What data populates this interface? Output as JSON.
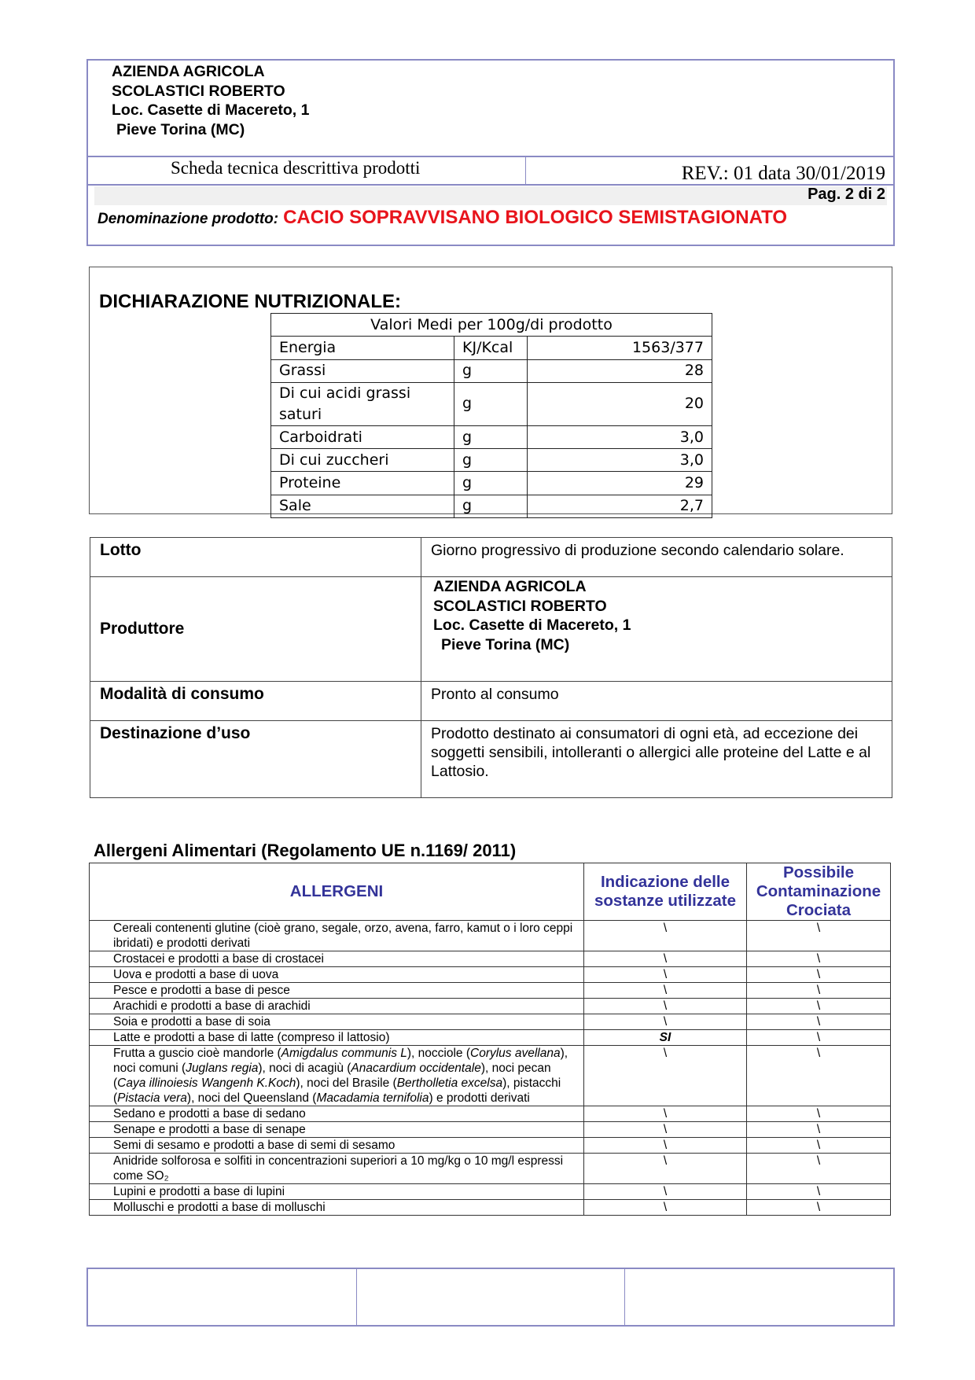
{
  "header": {
    "company": [
      "AZIENDA AGRICOLA",
      "SCOLASTICI ROBERTO",
      "Loc. Casette di Macereto, 1",
      "Pieve Torina (MC)"
    ],
    "doc_title": "Scheda tecnica descrittiva prodotti",
    "revision": "REV.: 01 data 30/01/2019",
    "page": "Pag. 2 di 2",
    "product_label": "Denominazione prodotto:",
    "product_name": "CACIO SOPRAVVISANO BIOLOGICO SEMISTAGIONATO",
    "product_color": "#e8141c"
  },
  "nutrition": {
    "title": "DICHIARAZIONE NUTRIZIONALE:",
    "header": "Valori Medi per 100g/di prodotto",
    "rows": [
      {
        "name": "Energia",
        "unit": "KJ/Kcal",
        "value": "1563/377"
      },
      {
        "name": "Grassi",
        "unit": "g",
        "value": "28"
      },
      {
        "name": "Di cui acidi grassi saturi",
        "unit": "g",
        "value": "20"
      },
      {
        "name": "Carboidrati",
        "unit": "g",
        "value": "3,0"
      },
      {
        "name": "Di cui zuccheri",
        "unit": "g",
        "value": "3,0"
      },
      {
        "name": "Proteine",
        "unit": "g",
        "value": "29"
      },
      {
        "name": "Sale",
        "unit": "g",
        "value": "2,7"
      }
    ]
  },
  "info": {
    "lotto_label": "Lotto",
    "lotto_value": "Giorno progressivo di produzione secondo calendario solare.",
    "produttore_label": "Produttore",
    "produttore_value": [
      "AZIENDA AGRICOLA",
      "SCOLASTICI ROBERTO",
      "Loc. Casette di Macereto, 1",
      "Pieve Torina (MC)"
    ],
    "consumo_label": "Modalità di consumo",
    "consumo_value": "Pronto al consumo",
    "destinazione_label": "Destinazione d’uso",
    "destinazione_value": "Prodotto destinato ai consumatori di ogni età, ad eccezione dei soggetti sensibili, intolleranti o allergici alle proteine del Latte e al Lattosio."
  },
  "allergens": {
    "title": "Allergeni Alimentari (Regolamento UE n.1169/ 2011)",
    "col_allergeni": "ALLERGENI",
    "col_sostanze": "Indicazione delle sostanze utilizzate",
    "col_contaminazione": "Possibile Contaminazione Crociata",
    "header_color": "#333399",
    "rows": [
      {
        "name": "Cereali contenenti glutine (cioè grano, segale, orzo, avena, farro, kamut o i loro ceppi ibridati) e prodotti derivati",
        "used": "\\",
        "cross": "\\"
      },
      {
        "name": "Crostacei e prodotti a base di crostacei",
        "used": "\\",
        "cross": "\\"
      },
      {
        "name": "Uova e prodotti a base di uova",
        "used": "\\",
        "cross": "\\"
      },
      {
        "name": "Pesce e prodotti a base di pesce",
        "used": "\\",
        "cross": "\\"
      },
      {
        "name": "Arachidi e prodotti a base di arachidi",
        "used": "\\",
        "cross": "\\"
      },
      {
        "name": "Soia e prodotti a base di soia",
        "used": "\\",
        "cross": "\\"
      },
      {
        "name": "Latte e prodotti a base di latte (compreso il lattosio)",
        "used": "SI",
        "cross": "\\"
      },
      {
        "name_html": true,
        "name": "Frutta a guscio cioè mandorle (Amigdalus communis L), nocciole (Corylus avellana), noci comuni (Juglans regia), noci di acagiù (Anacardium occidentale), noci pecan (Caya illinoiesis Wangenh K.Koch), noci del Brasile (Bertholletia excelsa), pistacchi (Pistacia vera), noci del Queensland (Macadamia ternifolia) e prodotti derivati",
        "used": "\\",
        "cross": "\\"
      },
      {
        "name": "Sedano e prodotti a base di sedano",
        "used": "\\",
        "cross": "\\"
      },
      {
        "name": "Senape e prodotti a base di senape",
        "used": "\\",
        "cross": "\\"
      },
      {
        "name": "Semi di sesamo e prodotti a base di semi di sesamo",
        "used": "\\",
        "cross": "\\"
      },
      {
        "name": "Anidride solforosa e solfiti in concentrazioni superiori a 10 mg/kg o 10 mg/l espressi come SO₂",
        "used": "\\",
        "cross": "\\"
      },
      {
        "name": "Lupini e prodotti a base di lupini",
        "used": "\\",
        "cross": "\\"
      },
      {
        "name": "Molluschi e prodotti a base di molluschi",
        "used": "\\",
        "cross": "\\"
      }
    ]
  }
}
